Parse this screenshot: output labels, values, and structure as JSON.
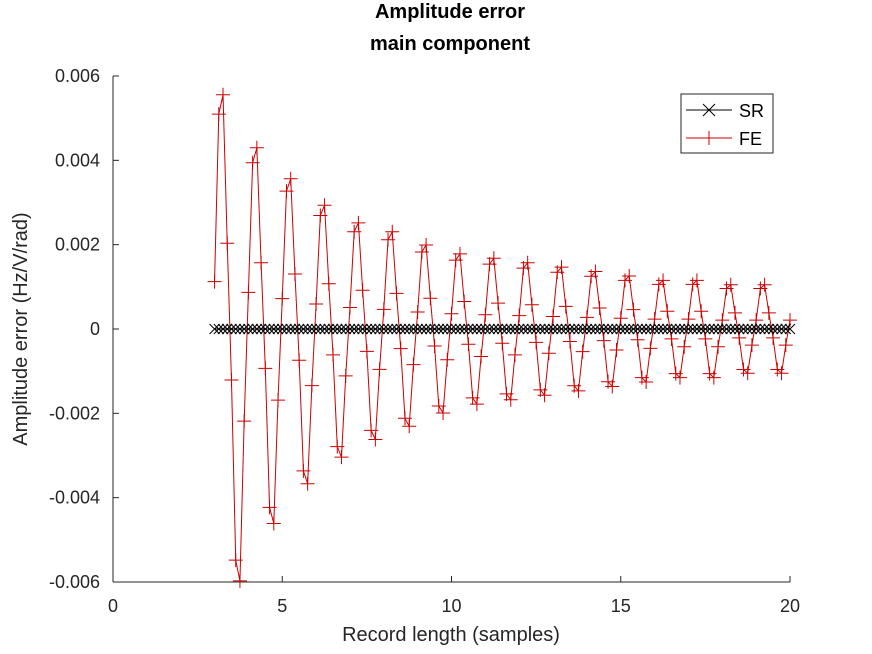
{
  "chart_data": {
    "type": "line",
    "title": [
      "Amplitude error",
      "main component"
    ],
    "xlabel": "Record length (samples)",
    "ylabel": "Amplitude error (Hz/V/rad)",
    "xlim": [
      0,
      20
    ],
    "ylim": [
      -0.006,
      0.006
    ],
    "xticks": [
      0,
      5,
      10,
      15,
      20
    ],
    "yticks": [
      -0.006,
      -0.004,
      -0.002,
      0,
      0.002,
      0.004,
      0.006
    ],
    "xtick_labels": [
      "0",
      "5",
      "10",
      "15",
      "20"
    ],
    "ytick_labels": [
      "-0.006",
      "-0.004",
      "-0.002",
      "0",
      "0.002",
      "0.004",
      "0.006"
    ],
    "grid": false,
    "legend_position": "top-right",
    "x_start": 3,
    "x_end": 20,
    "x_step": 0.125,
    "series": [
      {
        "name": "SR",
        "color": "#000000",
        "marker": "x",
        "values": "approximately 0 at every sample"
      },
      {
        "name": "FE",
        "color": "#cc0000",
        "marker": "+",
        "envelope": "approximately 0.0165 / x^1.08",
        "cycle_period_samples": 1.0,
        "peaks": [
          [
            3.2,
            0.0053
          ],
          [
            4.2,
            0.0041
          ],
          [
            5.2,
            0.0034
          ],
          [
            6.2,
            0.0028
          ],
          [
            7.2,
            0.0024
          ],
          [
            8.2,
            0.0022
          ],
          [
            9.2,
            0.0019
          ],
          [
            10.2,
            0.0017
          ],
          [
            11.2,
            0.0016
          ],
          [
            12.2,
            0.0015
          ],
          [
            13.2,
            0.0014
          ],
          [
            14.2,
            0.0013
          ],
          [
            15.2,
            0.0012
          ],
          [
            16.2,
            0.0011
          ],
          [
            17.2,
            0.0011
          ],
          [
            18.2,
            0.001
          ],
          [
            19.2,
            0.001
          ]
        ],
        "troughs": [
          [
            3.75,
            -0.0057
          ],
          [
            4.75,
            -0.0044
          ],
          [
            5.75,
            -0.0035
          ],
          [
            6.75,
            -0.0029
          ],
          [
            7.75,
            -0.0025
          ],
          [
            8.75,
            -0.0022
          ],
          [
            9.75,
            -0.0019
          ],
          [
            10.75,
            -0.0017
          ],
          [
            11.75,
            -0.0016
          ],
          [
            12.75,
            -0.0015
          ],
          [
            13.75,
            -0.0014
          ],
          [
            14.75,
            -0.0013
          ],
          [
            15.75,
            -0.0012
          ],
          [
            16.75,
            -0.0011
          ],
          [
            17.75,
            -0.0011
          ],
          [
            18.75,
            -0.001
          ],
          [
            19.75,
            -0.001
          ]
        ]
      }
    ]
  }
}
